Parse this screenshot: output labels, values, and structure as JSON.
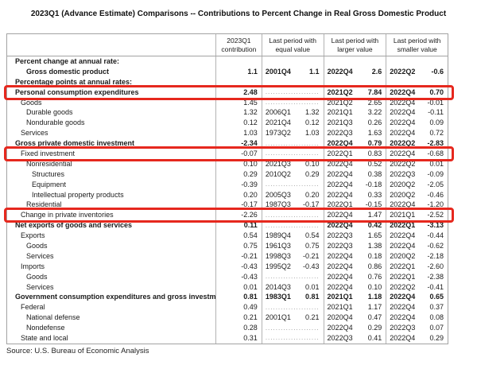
{
  "title": "2023Q1 (Advance Estimate) Comparisons -- Contributions to Percent Change in Real Gross Domestic Product",
  "source": "Source: U.S. Bureau of Economic Analysis",
  "highlight_color": "#e6281e",
  "table": {
    "columns": [
      {
        "label": "2023Q1 contribution"
      },
      {
        "label": "Last period with equal value"
      },
      {
        "label": "Last period with larger value"
      },
      {
        "label": "Last period with smaller value"
      }
    ],
    "rows": [
      {
        "label": "Percent change at annual rate:",
        "indent": 0,
        "bold": true,
        "highlight": false,
        "c": "",
        "ep": "",
        "ev": "",
        "lp": "",
        "lv": "",
        "sp": "",
        "sv": ""
      },
      {
        "label": "Gross domestic product",
        "indent": 2,
        "bold": true,
        "highlight": false,
        "c": "1.1",
        "ep": "2001Q4",
        "ev": "1.1",
        "lp": "2022Q4",
        "lv": "2.6",
        "sp": "2022Q2",
        "sv": "-0.6"
      },
      {
        "label": "Percentage points at annual rates:",
        "indent": 0,
        "bold": true,
        "highlight": false,
        "c": "",
        "ep": "",
        "ev": "",
        "lp": "",
        "lv": "",
        "sp": "",
        "sv": ""
      },
      {
        "label": "Personal consumption expenditures",
        "indent": 0,
        "bold": true,
        "highlight": true,
        "c": "2.48",
        "ep": "...............",
        "ev": "...............",
        "lp": "2021Q2",
        "lv": "7.84",
        "sp": "2022Q4",
        "sv": "0.70"
      },
      {
        "label": "Goods",
        "indent": 1,
        "bold": false,
        "highlight": false,
        "c": "1.45",
        "ep": "...............",
        "ev": "...............",
        "lp": "2021Q2",
        "lv": "2.65",
        "sp": "2022Q4",
        "sv": "-0.01"
      },
      {
        "label": "Durable goods",
        "indent": 2,
        "bold": false,
        "highlight": false,
        "c": "1.32",
        "ep": "2006Q1",
        "ev": "1.32",
        "lp": "2021Q1",
        "lv": "3.22",
        "sp": "2022Q4",
        "sv": "-0.11"
      },
      {
        "label": "Nondurable goods",
        "indent": 2,
        "bold": false,
        "highlight": false,
        "c": "0.12",
        "ep": "2021Q4",
        "ev": "0.12",
        "lp": "2021Q3",
        "lv": "0.26",
        "sp": "2022Q4",
        "sv": "0.09"
      },
      {
        "label": "Services",
        "indent": 1,
        "bold": false,
        "highlight": false,
        "c": "1.03",
        "ep": "1973Q2",
        "ev": "1.03",
        "lp": "2022Q3",
        "lv": "1.63",
        "sp": "2022Q4",
        "sv": "0.72"
      },
      {
        "label": "Gross private domestic investment",
        "indent": 0,
        "bold": true,
        "highlight": false,
        "c": "-2.34",
        "ep": "...............",
        "ev": "...............",
        "lp": "2022Q4",
        "lv": "0.79",
        "sp": "2022Q2",
        "sv": "-2.83"
      },
      {
        "label": "Fixed investment",
        "indent": 1,
        "bold": false,
        "highlight": true,
        "c": "-0.07",
        "ep": "...............",
        "ev": "...............",
        "lp": "2022Q1",
        "lv": "0.83",
        "sp": "2022Q4",
        "sv": "-0.68"
      },
      {
        "label": "Nonresidential",
        "indent": 2,
        "bold": false,
        "highlight": false,
        "c": "0.10",
        "ep": "2021Q3",
        "ev": "0.10",
        "lp": "2022Q4",
        "lv": "0.52",
        "sp": "2022Q2",
        "sv": "0.01"
      },
      {
        "label": "Structures",
        "indent": 3,
        "bold": false,
        "highlight": false,
        "c": "0.29",
        "ep": "2010Q2",
        "ev": "0.29",
        "lp": "2022Q4",
        "lv": "0.38",
        "sp": "2022Q3",
        "sv": "-0.09"
      },
      {
        "label": "Equipment",
        "indent": 3,
        "bold": false,
        "highlight": false,
        "c": "-0.39",
        "ep": "...............",
        "ev": "...............",
        "lp": "2022Q4",
        "lv": "-0.18",
        "sp": "2020Q2",
        "sv": "-2.05"
      },
      {
        "label": "Intellectual property products",
        "indent": 3,
        "bold": false,
        "highlight": false,
        "c": "0.20",
        "ep": "2005Q3",
        "ev": "0.20",
        "lp": "2022Q4",
        "lv": "0.33",
        "sp": "2020Q2",
        "sv": "-0.46"
      },
      {
        "label": "Residential",
        "indent": 2,
        "bold": false,
        "highlight": false,
        "c": "-0.17",
        "ep": "1987Q3",
        "ev": "-0.17",
        "lp": "2022Q1",
        "lv": "-0.15",
        "sp": "2022Q4",
        "sv": "-1.20"
      },
      {
        "label": "Change in private inventories",
        "indent": 1,
        "bold": false,
        "highlight": true,
        "c": "-2.26",
        "ep": "...............",
        "ev": "...............",
        "lp": "2022Q4",
        "lv": "1.47",
        "sp": "2021Q1",
        "sv": "-2.52"
      },
      {
        "label": "Net exports of goods and services",
        "indent": 0,
        "bold": true,
        "highlight": false,
        "c": "0.11",
        "ep": "...............",
        "ev": "...............",
        "lp": "2022Q4",
        "lv": "0.42",
        "sp": "2022Q1",
        "sv": "-3.13"
      },
      {
        "label": "Exports",
        "indent": 1,
        "bold": false,
        "highlight": false,
        "c": "0.54",
        "ep": "1989Q4",
        "ev": "0.54",
        "lp": "2022Q3",
        "lv": "1.65",
        "sp": "2022Q4",
        "sv": "-0.44"
      },
      {
        "label": "Goods",
        "indent": 2,
        "bold": false,
        "highlight": false,
        "c": "0.75",
        "ep": "1961Q3",
        "ev": "0.75",
        "lp": "2022Q3",
        "lv": "1.38",
        "sp": "2022Q4",
        "sv": "-0.62"
      },
      {
        "label": "Services",
        "indent": 2,
        "bold": false,
        "highlight": false,
        "c": "-0.21",
        "ep": "1998Q3",
        "ev": "-0.21",
        "lp": "2022Q4",
        "lv": "0.18",
        "sp": "2020Q2",
        "sv": "-2.18"
      },
      {
        "label": "Imports",
        "indent": 1,
        "bold": false,
        "highlight": false,
        "c": "-0.43",
        "ep": "1995Q2",
        "ev": "-0.43",
        "lp": "2022Q4",
        "lv": "0.86",
        "sp": "2022Q1",
        "sv": "-2.60"
      },
      {
        "label": "Goods",
        "indent": 2,
        "bold": false,
        "highlight": false,
        "c": "-0.43",
        "ep": "...............",
        "ev": "...............",
        "lp": "2022Q4",
        "lv": "0.76",
        "sp": "2022Q1",
        "sv": "-2.38"
      },
      {
        "label": "Services",
        "indent": 2,
        "bold": false,
        "highlight": false,
        "c": "0.01",
        "ep": "2014Q3",
        "ev": "0.01",
        "lp": "2022Q4",
        "lv": "0.10",
        "sp": "2022Q2",
        "sv": "-0.41"
      },
      {
        "label": "Government consumption expenditures and gross investment",
        "indent": 0,
        "bold": true,
        "highlight": false,
        "c": "0.81",
        "ep": "1983Q1",
        "ev": "0.81",
        "lp": "2021Q1",
        "lv": "1.18",
        "sp": "2022Q4",
        "sv": "0.65"
      },
      {
        "label": "Federal",
        "indent": 1,
        "bold": false,
        "highlight": false,
        "c": "0.49",
        "ep": "...............",
        "ev": "...............",
        "lp": "2021Q1",
        "lv": "1.17",
        "sp": "2022Q4",
        "sv": "0.37"
      },
      {
        "label": "National defense",
        "indent": 2,
        "bold": false,
        "highlight": false,
        "c": "0.21",
        "ep": "2001Q1",
        "ev": "0.21",
        "lp": "2020Q4",
        "lv": "0.47",
        "sp": "2022Q4",
        "sv": "0.08"
      },
      {
        "label": "Nondefense",
        "indent": 2,
        "bold": false,
        "highlight": false,
        "c": "0.28",
        "ep": "...............",
        "ev": "...............",
        "lp": "2022Q4",
        "lv": "0.29",
        "sp": "2022Q3",
        "sv": "0.07"
      },
      {
        "label": "State and local",
        "indent": 1,
        "bold": false,
        "highlight": false,
        "c": "0.31",
        "ep": "...............",
        "ev": "...............",
        "lp": "2022Q3",
        "lv": "0.41",
        "sp": "2022Q4",
        "sv": "0.29"
      }
    ]
  }
}
